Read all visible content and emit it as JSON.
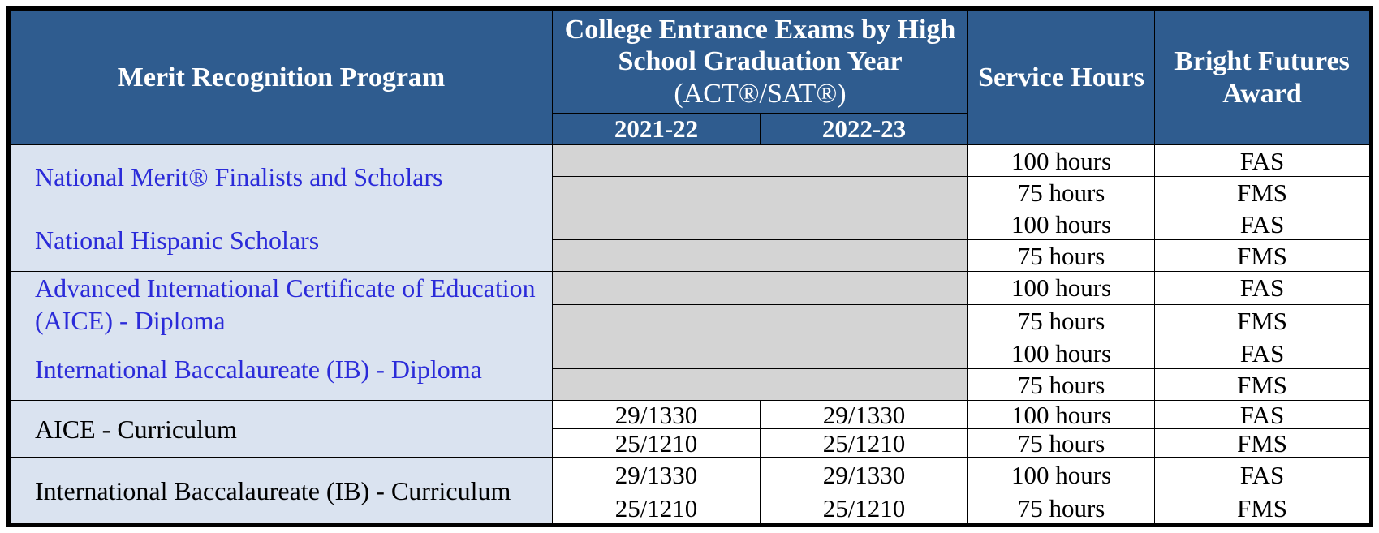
{
  "header": {
    "program": "Merit Recognition Program",
    "exams_title": "College Entrance Exams by High School Graduation Year",
    "exams_sub": "(ACT®/SAT®)",
    "year1": "2021-22",
    "year2": "2022-23",
    "service": "Service Hours",
    "award": "Bright Futures Award"
  },
  "rows": [
    {
      "program": "National Merit® Finalists and Scholars",
      "style": "link",
      "sub": [
        {
          "score1": "",
          "score2": "",
          "hours": "100 hours",
          "award": "FAS"
        },
        {
          "score1": "",
          "score2": "",
          "hours": "75 hours",
          "award": "FMS"
        }
      ]
    },
    {
      "program": "National Hispanic Scholars",
      "style": "link",
      "sub": [
        {
          "score1": "",
          "score2": "",
          "hours": "100 hours",
          "award": "FAS"
        },
        {
          "score1": "",
          "score2": "",
          "hours": "75 hours",
          "award": "FMS"
        }
      ]
    },
    {
      "program": "Advanced International Certificate of Education (AICE) - Diploma",
      "style": "link",
      "sub": [
        {
          "score1": "",
          "score2": "",
          "hours": "100 hours",
          "award": "FAS"
        },
        {
          "score1": "",
          "score2": "",
          "hours": "75 hours",
          "award": "FMS"
        }
      ]
    },
    {
      "program": "International Baccalaureate (IB) - Diploma",
      "style": "link",
      "sub": [
        {
          "score1": "",
          "score2": "",
          "hours": "100 hours",
          "award": "FAS"
        },
        {
          "score1": "",
          "score2": "",
          "hours": "75 hours",
          "award": "FMS"
        }
      ]
    },
    {
      "program": "AICE - Curriculum",
      "style": "plain",
      "sub": [
        {
          "score1": "29/1330",
          "score2": "29/1330",
          "hours": "100 hours",
          "award": "FAS"
        },
        {
          "score1": "25/1210",
          "score2": "25/1210",
          "hours": "75 hours",
          "award": "FMS"
        }
      ]
    },
    {
      "program": "International Baccalaureate (IB) - Curriculum",
      "style": "plain",
      "sub": [
        {
          "score1": "29/1330",
          "score2": "29/1330",
          "hours": "100 hours",
          "award": "FAS"
        },
        {
          "score1": "25/1210",
          "score2": "25/1210",
          "hours": "75 hours",
          "award": "FMS"
        }
      ]
    }
  ]
}
